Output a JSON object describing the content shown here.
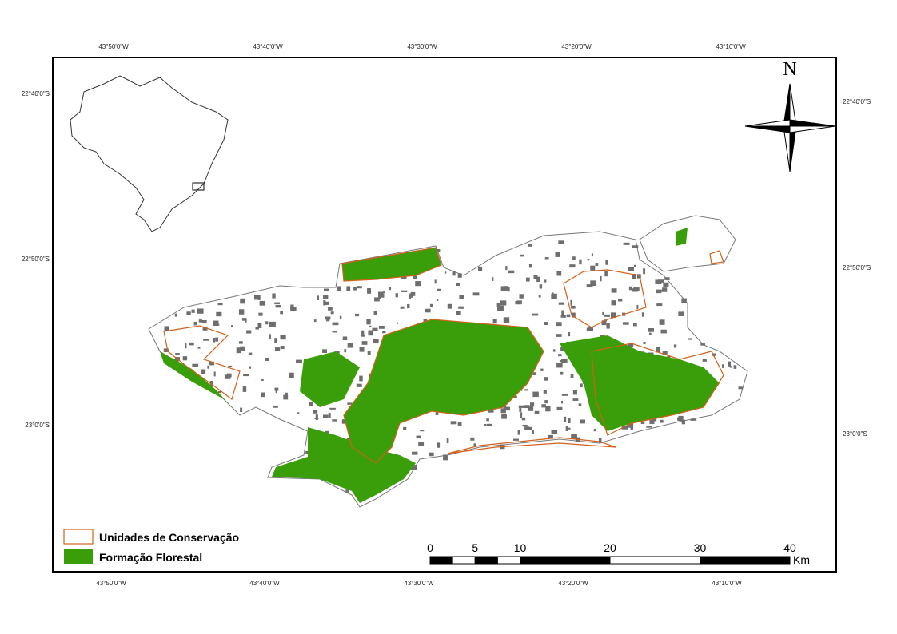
{
  "frame": {
    "top_labels": [
      "43°50'0\"W",
      "43°40'0\"W",
      "43°30'0\"W",
      "43°20'0\"W",
      "43°10'0\"W"
    ],
    "bottom_labels": [
      "43°50'0\"W",
      "43°40'0\"W",
      "43°30'0\"W",
      "43°20'0\"W",
      "43°10'0\"W"
    ],
    "left_labels": [
      "22°40'0\"S",
      "22°50'0\"S",
      "23°0'0\"S"
    ],
    "right_labels": [
      "22°40'0\"S",
      "22°50'0\"S",
      "23°0'0\"S"
    ]
  },
  "north": "N",
  "legend": [
    "Unidades de Conservação",
    "Formação Florestal"
  ],
  "scale_bar": {
    "ticks": [
      0,
      5,
      10,
      20,
      30,
      40
    ],
    "unit": "Km"
  }
}
